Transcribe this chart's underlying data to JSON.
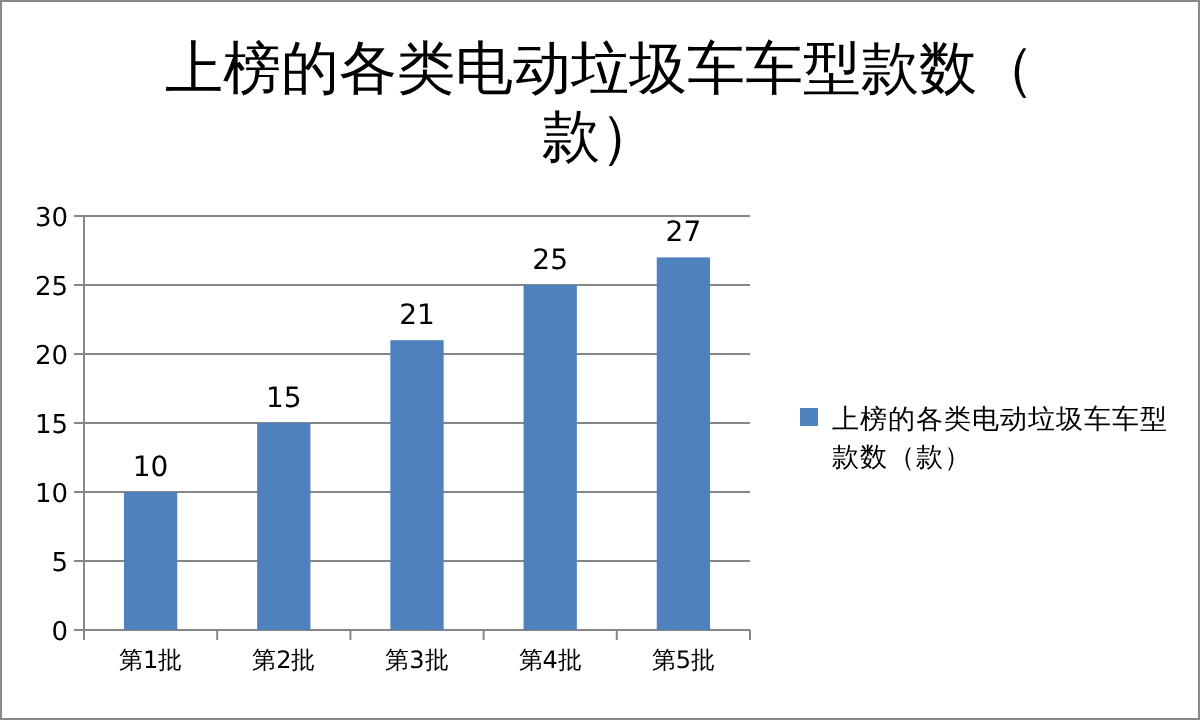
{
  "chart_data": {
    "type": "bar",
    "title": "上榜的各类电动垃圾车车型款数（款）",
    "categories": [
      "第1批",
      "第2批",
      "第3批",
      "第4批",
      "第5批"
    ],
    "series": [
      {
        "name": "上榜的各类电动垃圾车车型款数（款）",
        "color": "#4f81bd",
        "values": [
          10,
          15,
          21,
          25,
          27
        ]
      }
    ],
    "ylim": [
      0,
      30
    ],
    "yticks": [
      0,
      5,
      10,
      15,
      20,
      25,
      30
    ],
    "grid": "y",
    "legend": "right",
    "data_labels": true
  }
}
